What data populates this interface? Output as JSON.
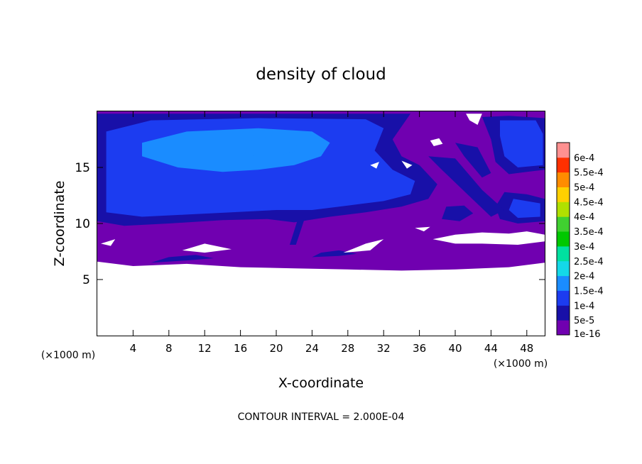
{
  "chart_data": {
    "type": "heatmap",
    "title": "density of cloud",
    "xlabel": "X-coordinate",
    "ylabel": "Z-coordinate",
    "x_unit": "(×1000 m)",
    "x_unit_left": "(×1000 m)",
    "xlim": [
      0,
      50
    ],
    "ylim": [
      0,
      20
    ],
    "x_ticks": [
      "4",
      "8",
      "12",
      "16",
      "20",
      "24",
      "28",
      "32",
      "36",
      "40",
      "44",
      "48"
    ],
    "y_ticks": [
      "5",
      "10",
      "15"
    ],
    "footer": "CONTOUR INTERVAL = 2.000E-04",
    "legend": {
      "labels": [
        "1e-16",
        "5e-5",
        "1e-4",
        "1.5e-4",
        "2e-4",
        "2.5e-4",
        "3e-4",
        "3.5e-4",
        "4e-4",
        "4.5e-4",
        "5e-4",
        "5.5e-4",
        "6e-4"
      ],
      "colors": [
        "#7000b0",
        "#1810a8",
        "#1c3cf0",
        "#1a8cff",
        "#14d8e8",
        "#00e0a0",
        "#00c800",
        "#40d030",
        "#b0e000",
        "#ffd000",
        "#ff8c00",
        "#ff3000",
        "#ff9090"
      ]
    },
    "regions": [
      {
        "name": "no-cloud-below",
        "level": "none",
        "points": [
          [
            0,
            0
          ],
          [
            50,
            0
          ],
          [
            50,
            6.5
          ],
          [
            46,
            6.1
          ],
          [
            40,
            5.9
          ],
          [
            34,
            5.8
          ],
          [
            28,
            5.9
          ],
          [
            22,
            6.0
          ],
          [
            16,
            6.1
          ],
          [
            10,
            6.4
          ],
          [
            4,
            6.2
          ],
          [
            0,
            6.6
          ]
        ]
      },
      {
        "name": "low-cloud-layer",
        "level": "1e-16",
        "points": [
          [
            0,
            6.6
          ],
          [
            4,
            6.2
          ],
          [
            10,
            6.4
          ],
          [
            16,
            6.1
          ],
          [
            22,
            6.0
          ],
          [
            28,
            5.9
          ],
          [
            34,
            5.8
          ],
          [
            40,
            5.9
          ],
          [
            46,
            6.1
          ],
          [
            50,
            6.5
          ],
          [
            50,
            20
          ],
          [
            0,
            20
          ]
        ]
      },
      {
        "name": "anvil-outer",
        "level": "5e-5",
        "points": [
          [
            0,
            10.2
          ],
          [
            3,
            9.8
          ],
          [
            8,
            10.0
          ],
          [
            14,
            10.3
          ],
          [
            19,
            10.4
          ],
          [
            22,
            10.1
          ],
          [
            26,
            10.6
          ],
          [
            30,
            11.0
          ],
          [
            34,
            11.5
          ],
          [
            37,
            12.2
          ],
          [
            38,
            13.5
          ],
          [
            36,
            15.2
          ],
          [
            34,
            16.0
          ],
          [
            33,
            17.5
          ],
          [
            35,
            19.8
          ],
          [
            0,
            19.8
          ]
        ]
      },
      {
        "name": "anvil-main",
        "level": "1e-4",
        "points": [
          [
            1,
            11.0
          ],
          [
            5,
            10.6
          ],
          [
            10,
            10.8
          ],
          [
            15,
            11.0
          ],
          [
            20,
            11.2
          ],
          [
            24,
            11.2
          ],
          [
            28,
            11.6
          ],
          [
            32,
            12.0
          ],
          [
            35,
            12.6
          ],
          [
            35.5,
            13.8
          ],
          [
            33,
            14.8
          ],
          [
            31,
            16.5
          ],
          [
            32,
            18.5
          ],
          [
            30,
            19.3
          ],
          [
            18,
            19.4
          ],
          [
            6,
            19.2
          ],
          [
            1,
            18.2
          ]
        ]
      },
      {
        "name": "anvil-core",
        "level": "1.5e-4",
        "points": [
          [
            5,
            16.0
          ],
          [
            9,
            15.0
          ],
          [
            14,
            14.6
          ],
          [
            18,
            14.8
          ],
          [
            22,
            15.2
          ],
          [
            25,
            16.0
          ],
          [
            26,
            17.2
          ],
          [
            24,
            18.2
          ],
          [
            18,
            18.5
          ],
          [
            10,
            18.2
          ],
          [
            5,
            17.2
          ]
        ]
      },
      {
        "name": "core-peak",
        "level": "1.5e-4",
        "points": [
          [
            16.5,
            16.2
          ],
          [
            19,
            15.8
          ],
          [
            22,
            16.4
          ],
          [
            22.5,
            17.4
          ],
          [
            20,
            17.9
          ],
          [
            17,
            17.4
          ]
        ]
      },
      {
        "name": "right-cloud-top",
        "level": "5e-5",
        "points": [
          [
            43,
            19.5
          ],
          [
            46,
            19.6
          ],
          [
            50,
            19.4
          ],
          [
            50,
            14.8
          ],
          [
            48,
            14.6
          ],
          [
            46,
            14.4
          ],
          [
            44.5,
            15.5
          ],
          [
            44,
            17.5
          ]
        ]
      },
      {
        "name": "right-cloud-core",
        "level": "1e-4",
        "points": [
          [
            45,
            19.2
          ],
          [
            49,
            19.2
          ],
          [
            49.8,
            18.0
          ],
          [
            49.8,
            15.2
          ],
          [
            47,
            15.0
          ],
          [
            45.5,
            16.0
          ],
          [
            45,
            17.8
          ]
        ]
      },
      {
        "name": "right-cloud-low",
        "level": "5e-5",
        "points": [
          [
            45.5,
            12.8
          ],
          [
            48,
            12.6
          ],
          [
            50,
            12.2
          ],
          [
            50,
            10.2
          ],
          [
            47,
            10.0
          ],
          [
            45,
            10.4
          ],
          [
            44.5,
            11.5
          ]
        ]
      },
      {
        "name": "right-cloud-low-core",
        "level": "1e-4",
        "points": [
          [
            46.5,
            12.2
          ],
          [
            49.5,
            11.8
          ],
          [
            49.5,
            10.6
          ],
          [
            47,
            10.5
          ],
          [
            46,
            11.2
          ]
        ]
      },
      {
        "name": "left-streak",
        "level": "5e-5",
        "points": [
          [
            38.5,
            10.4
          ],
          [
            40.5,
            10.2
          ],
          [
            42,
            10.9
          ],
          [
            41,
            11.6
          ],
          [
            39,
            11.5
          ]
        ]
      },
      {
        "name": "diagonal-band-1",
        "level": "5e-5",
        "points": [
          [
            37,
            16.0
          ],
          [
            40,
            15.8
          ],
          [
            43,
            13.0
          ],
          [
            45.5,
            11.2
          ],
          [
            44,
            10.6
          ],
          [
            41.5,
            12.5
          ],
          [
            38.5,
            14.8
          ]
        ]
      },
      {
        "name": "diagonal-band-2",
        "level": "5e-5",
        "points": [
          [
            40,
            17.2
          ],
          [
            42.5,
            16.8
          ],
          [
            44,
            14.5
          ],
          [
            43,
            14.1
          ],
          [
            41,
            16.0
          ]
        ]
      },
      {
        "name": "low-streak-1",
        "level": "5e-5",
        "points": [
          [
            6,
            6.5
          ],
          [
            10,
            6.7
          ],
          [
            13,
            6.9
          ],
          [
            11,
            7.2
          ],
          [
            8,
            7.0
          ]
        ]
      },
      {
        "name": "low-streak-2",
        "level": "5e-5",
        "points": [
          [
            24,
            7.0
          ],
          [
            27,
            7.1
          ],
          [
            29,
            7.3
          ],
          [
            27,
            7.6
          ],
          [
            25,
            7.4
          ]
        ]
      },
      {
        "name": "tower-stem",
        "level": "5e-5",
        "points": [
          [
            21.5,
            8.1
          ],
          [
            22.2,
            8.1
          ],
          [
            23.2,
            10.5
          ],
          [
            22.5,
            10.6
          ]
        ]
      },
      {
        "name": "gap-left",
        "level": "none",
        "points": [
          [
            0.4,
            8.2
          ],
          [
            2,
            8.6
          ],
          [
            1.5,
            8.0
          ]
        ]
      },
      {
        "name": "gap-mid-1",
        "level": "none",
        "points": [
          [
            9.5,
            7.6
          ],
          [
            12,
            8.2
          ],
          [
            15,
            7.7
          ],
          [
            12,
            7.4
          ]
        ]
      },
      {
        "name": "gap-mid-2",
        "level": "none",
        "points": [
          [
            27.5,
            7.4
          ],
          [
            30,
            8.2
          ],
          [
            32,
            8.6
          ],
          [
            30.5,
            7.6
          ]
        ]
      },
      {
        "name": "gap-right-low",
        "level": "none",
        "points": [
          [
            37.5,
            8.6
          ],
          [
            40,
            9.0
          ],
          [
            43,
            9.2
          ],
          [
            46,
            9.1
          ],
          [
            48,
            9.3
          ],
          [
            50,
            9.0
          ],
          [
            50,
            8.4
          ],
          [
            47,
            8.1
          ],
          [
            43,
            8.2
          ],
          [
            40,
            8.2
          ]
        ]
      },
      {
        "name": "gap-top-1",
        "level": "none",
        "points": [
          [
            30.5,
            15.2
          ],
          [
            31.5,
            15.5
          ],
          [
            31.2,
            14.9
          ]
        ]
      },
      {
        "name": "gap-top-2",
        "level": "none",
        "points": [
          [
            34,
            15.6
          ],
          [
            35.2,
            15.2
          ],
          [
            34.6,
            14.9
          ]
        ]
      },
      {
        "name": "gap-top-3",
        "level": "none",
        "points": [
          [
            37.2,
            17.4
          ],
          [
            38.2,
            17.6
          ],
          [
            38.6,
            17.1
          ],
          [
            37.6,
            16.9
          ]
        ]
      },
      {
        "name": "gap-top-4",
        "level": "none",
        "points": [
          [
            41.2,
            19.8
          ],
          [
            43.0,
            19.8
          ],
          [
            42.5,
            18.8
          ],
          [
            41.6,
            19.2
          ]
        ]
      },
      {
        "name": "gap-mid-3",
        "level": "none",
        "points": [
          [
            35.5,
            9.6
          ],
          [
            37.2,
            9.7
          ],
          [
            36.5,
            9.3
          ]
        ]
      }
    ]
  }
}
